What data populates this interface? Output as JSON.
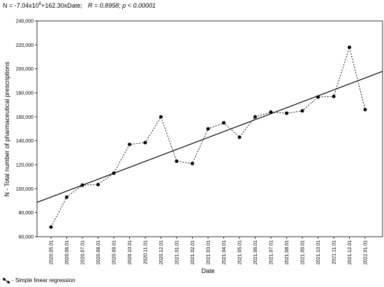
{
  "chart_data": {
    "type": "line",
    "title": "N = -7.04x10",
    "title_exponent": "6",
    "title_rest": "+162.30xDate;",
    "stats": "R = 0.8958; p < 0.00001",
    "x_label": "Date",
    "y_label": "N - Total number of pharmaceutical prescriptions",
    "legend": "- Simple linear regression",
    "categories": [
      "2020.05.01",
      "2020.06.01",
      "2020.07.01",
      "2020.08.01",
      "2020.09.01",
      "2020.10.01",
      "2020.11.01",
      "2020.12.01",
      "2021.01.01",
      "2021.02.01",
      "2021.03.01",
      "2021.04.01",
      "2021.05.01",
      "2021.06.01",
      "2021.07.01",
      "2021.08.01",
      "2021.09.01",
      "2021.10.01",
      "2021.11.01",
      "2021.12.01",
      "2022.01.01"
    ],
    "series": [
      {
        "color": "#000000",
        "values": [
          68000,
          93000,
          103000,
          103500,
          113000,
          137000,
          138500,
          160000,
          123000,
          121000,
          150000,
          155000,
          143000,
          160000,
          164000,
          163000,
          165000,
          176500,
          177000,
          218000,
          166000
        ]
      }
    ],
    "ylim": [
      60000,
      240000
    ],
    "yticks": [
      {
        "value": 60000,
        "label": "60,000"
      },
      {
        "value": 80000,
        "label": "80,000"
      },
      {
        "value": 100000,
        "label": "100,000"
      },
      {
        "value": 120000,
        "label": "120,000"
      },
      {
        "value": 140000,
        "label": "140,000"
      },
      {
        "value": 160000,
        "label": "160,000"
      },
      {
        "value": 180000,
        "label": "180,000"
      },
      {
        "value": 200000,
        "label": "200,000"
      },
      {
        "value": 220000,
        "label": "220,000"
      },
      {
        "value": 240000,
        "label": "240,000"
      }
    ],
    "grid": false
  }
}
